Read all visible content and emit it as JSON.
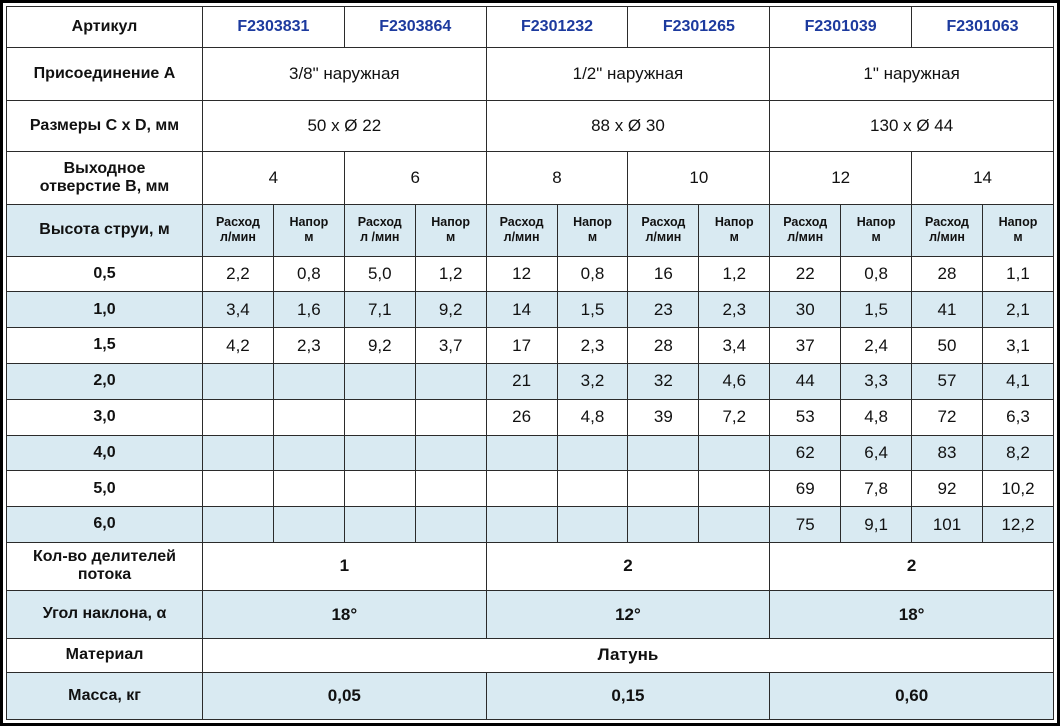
{
  "colors": {
    "article_text_blue": "#1c3a9e",
    "row_highlight_blue": "#d9eaf2",
    "border_black": "#000000"
  },
  "table": {
    "article": {
      "label": "Артикул",
      "values": [
        "F2303831",
        "F2303864",
        "F2301232",
        "F2301265",
        "F2301039",
        "F2301063"
      ]
    },
    "connection": {
      "label": "Присоединение А",
      "values": [
        "3/8\" наружная",
        "1/2\" наружная",
        "1\" наружная"
      ]
    },
    "dimensions": {
      "label": "Размеры C x D, мм",
      "values": [
        "50 x Ø 22",
        "88 x Ø 30",
        "130 x Ø 44"
      ]
    },
    "outlet": {
      "label_l1": "Выходное",
      "label_l2": "отверстие B, мм",
      "values": [
        "4",
        "6",
        "8",
        "10",
        "12",
        "14"
      ]
    },
    "jet_header": {
      "label": "Высота струи, м",
      "subheaders": [
        {
          "l1": "Расход",
          "l2": "л/мин"
        },
        {
          "l1": "Напор",
          "l2": "м"
        },
        {
          "l1": "Расход",
          "l2": "л /мин"
        },
        {
          "l1": "Напор",
          "l2": "м"
        },
        {
          "l1": "Расход",
          "l2": "л/мин"
        },
        {
          "l1": "Напор",
          "l2": "м"
        },
        {
          "l1": "Расход",
          "l2": "л/мин"
        },
        {
          "l1": "Напор",
          "l2": "м"
        },
        {
          "l1": "Расход",
          "l2": "л/мин"
        },
        {
          "l1": "Напор",
          "l2": "м"
        },
        {
          "l1": "Расход",
          "l2": "л/мин"
        },
        {
          "l1": "Напор",
          "l2": "м"
        }
      ]
    },
    "data_rows": [
      {
        "label": "0,5",
        "values": [
          "2,2",
          "0,8",
          "5,0",
          "1,2",
          "12",
          "0,8",
          "16",
          "1,2",
          "22",
          "0,8",
          "28",
          "1,1"
        ]
      },
      {
        "label": "1,0",
        "values": [
          "3,4",
          "1,6",
          "7,1",
          "9,2",
          "14",
          "1,5",
          "23",
          "2,3",
          "30",
          "1,5",
          "41",
          "2,1"
        ]
      },
      {
        "label": "1,5",
        "values": [
          "4,2",
          "2,3",
          "9,2",
          "3,7",
          "17",
          "2,3",
          "28",
          "3,4",
          "37",
          "2,4",
          "50",
          "3,1"
        ]
      },
      {
        "label": "2,0",
        "values": [
          "",
          "",
          "",
          "",
          "21",
          "3,2",
          "32",
          "4,6",
          "44",
          "3,3",
          "57",
          "4,1"
        ]
      },
      {
        "label": "3,0",
        "values": [
          "",
          "",
          "",
          "",
          "26",
          "4,8",
          "39",
          "7,2",
          "53",
          "4,8",
          "72",
          "6,3"
        ]
      },
      {
        "label": "4,0",
        "values": [
          "",
          "",
          "",
          "",
          "",
          "",
          "",
          "",
          "62",
          "6,4",
          "83",
          "8,2"
        ]
      },
      {
        "label": "5,0",
        "values": [
          "",
          "",
          "",
          "",
          "",
          "",
          "",
          "",
          "69",
          "7,8",
          "92",
          "10,2"
        ]
      },
      {
        "label": "6,0",
        "values": [
          "",
          "",
          "",
          "",
          "",
          "",
          "",
          "",
          "75",
          "9,1",
          "101",
          "12,2"
        ]
      }
    ],
    "dividers": {
      "label_l1": "Кол-во делителей",
      "label_l2": "потока",
      "values": [
        "1",
        "2",
        "2"
      ]
    },
    "angle": {
      "label": "Угол наклона, α",
      "values": [
        "18°",
        "12°",
        "18°"
      ]
    },
    "material": {
      "label": "Материал",
      "value": "Латунь"
    },
    "mass": {
      "label": "Масса, кг",
      "values": [
        "0,05",
        "0,15",
        "0,60"
      ]
    }
  }
}
